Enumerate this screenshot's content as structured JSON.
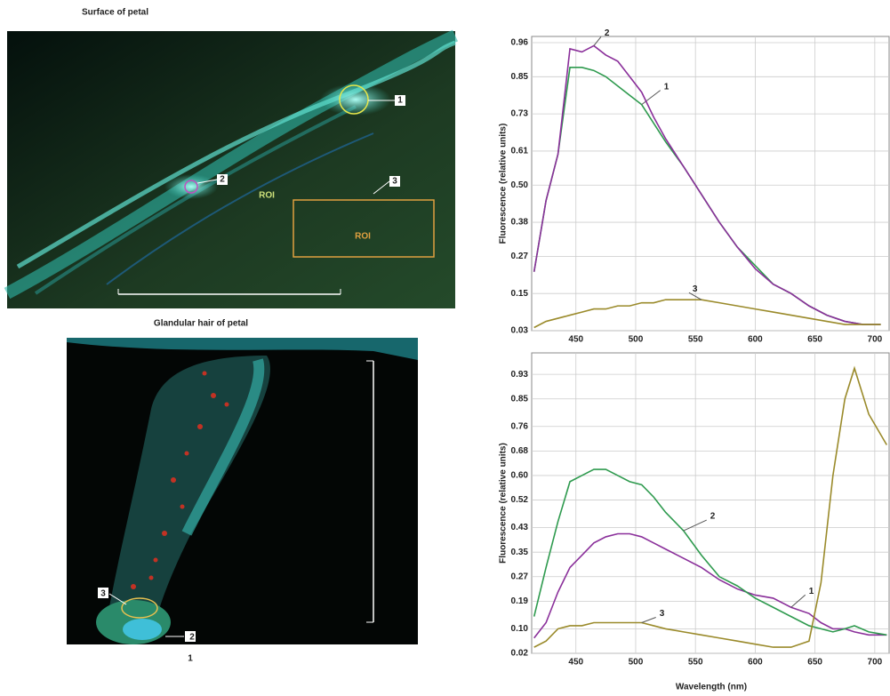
{
  "panels": [
    {
      "title": "Surface of petal",
      "markers": [
        "1",
        "2",
        "3"
      ],
      "roi": [
        "ROI",
        "ROI"
      ]
    },
    {
      "title": "Glandular hair of petal",
      "markers": [
        "1",
        "2",
        "3"
      ]
    }
  ],
  "chart_data": [
    {
      "type": "line",
      "y_label": "Fluorescence (relative units)",
      "x": [
        415,
        425,
        435,
        445,
        455,
        465,
        475,
        485,
        495,
        505,
        515,
        525,
        540,
        555,
        570,
        585,
        600,
        615,
        630,
        645,
        660,
        675,
        690,
        705
      ],
      "series": [
        {
          "name": "1",
          "color": "#2e9a4e",
          "values": [
            0.22,
            0.45,
            0.6,
            0.88,
            0.88,
            0.87,
            0.85,
            0.82,
            0.79,
            0.76,
            0.7,
            0.64,
            0.56,
            0.47,
            0.38,
            0.3,
            0.24,
            0.18,
            0.15,
            0.11,
            0.08,
            0.06,
            0.05,
            0.05
          ]
        },
        {
          "name": "2",
          "color": "#8a2f9a",
          "values": [
            0.22,
            0.45,
            0.6,
            0.94,
            0.93,
            0.95,
            0.92,
            0.9,
            0.85,
            0.8,
            0.72,
            0.65,
            0.56,
            0.47,
            0.38,
            0.3,
            0.23,
            0.18,
            0.15,
            0.11,
            0.08,
            0.06,
            0.05,
            0.05
          ]
        },
        {
          "name": "3",
          "color": "#9a8a2a",
          "values": [
            0.04,
            0.06,
            0.07,
            0.08,
            0.09,
            0.1,
            0.1,
            0.11,
            0.11,
            0.12,
            0.12,
            0.13,
            0.13,
            0.13,
            0.12,
            0.11,
            0.1,
            0.09,
            0.08,
            0.07,
            0.06,
            0.05,
            0.05,
            0.05
          ]
        }
      ],
      "xlim": [
        413,
        712
      ],
      "ylim": [
        0.03,
        0.98
      ],
      "xticks": [
        450,
        500,
        550,
        600,
        650,
        700
      ],
      "yticks": [
        0.03,
        0.15,
        0.27,
        0.38,
        {
          "value": 0.5,
          "label": "0.50"
        },
        0.61,
        0.73,
        0.85,
        0.96
      ],
      "grid": true
    },
    {
      "type": "line",
      "y_label": "Fluorescence (relative units)",
      "x_label": "Wavelength (nm)",
      "x": [
        415,
        425,
        435,
        445,
        455,
        465,
        475,
        485,
        495,
        505,
        515,
        525,
        540,
        555,
        570,
        585,
        600,
        615,
        630,
        645,
        655,
        665,
        675,
        683,
        695,
        710
      ],
      "series": [
        {
          "name": "1",
          "color": "#8a2f9a",
          "values": [
            0.07,
            0.12,
            0.22,
            0.3,
            0.34,
            0.38,
            0.4,
            0.41,
            0.41,
            0.4,
            0.38,
            0.36,
            0.33,
            0.3,
            0.26,
            0.23,
            0.21,
            0.2,
            0.17,
            0.15,
            0.12,
            0.1,
            0.1,
            0.09,
            0.08,
            0.08
          ]
        },
        {
          "name": "2",
          "color": "#2e9a4e",
          "values": [
            0.14,
            0.3,
            0.45,
            0.58,
            0.6,
            0.62,
            0.62,
            0.6,
            0.58,
            0.57,
            0.53,
            0.48,
            0.42,
            0.34,
            0.27,
            0.24,
            0.2,
            0.17,
            0.14,
            0.11,
            0.1,
            0.09,
            0.1,
            0.11,
            0.09,
            0.08
          ]
        },
        {
          "name": "3",
          "color": "#9a8a2a",
          "values": [
            0.04,
            0.06,
            0.1,
            0.11,
            0.11,
            0.12,
            0.12,
            0.12,
            0.12,
            0.12,
            0.11,
            0.1,
            0.09,
            0.08,
            0.07,
            0.06,
            0.05,
            0.04,
            0.04,
            0.06,
            0.25,
            0.6,
            0.85,
            0.95,
            0.8,
            0.7
          ]
        }
      ],
      "xlim": [
        413,
        712
      ],
      "ylim": [
        0.02,
        1.0
      ],
      "xticks": [
        450,
        500,
        550,
        600,
        650,
        700
      ],
      "yticks": [
        0.02,
        {
          "value": 0.1,
          "label": "0.10"
        },
        0.19,
        0.27,
        0.35,
        0.43,
        0.52,
        {
          "value": 0.6,
          "label": "0.60"
        },
        0.68,
        0.76,
        0.85,
        0.93
      ],
      "grid": true
    }
  ]
}
